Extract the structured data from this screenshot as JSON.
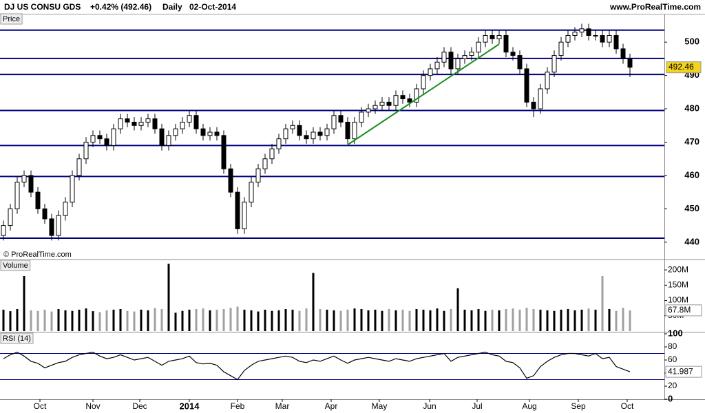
{
  "header": {
    "instrument": "DJ US CONSU GDS",
    "change": "+0.42% (492.46)",
    "period": "Daily",
    "date": "02-Oct-2014",
    "site": "www.ProRealTime.com",
    "watermark": "© ProRealTime.com"
  },
  "chart_data": [
    {
      "type": "candlestick",
      "title": "Price",
      "open": [
        442,
        445,
        450,
        458,
        460,
        455,
        450,
        447,
        442,
        448,
        452,
        460,
        465,
        470,
        472,
        471,
        469,
        474,
        477,
        476,
        475,
        476,
        477,
        474,
        469,
        472,
        474,
        476,
        478,
        474,
        472,
        473,
        472,
        462,
        455,
        444,
        452,
        458,
        462,
        465,
        468,
        471,
        474,
        475,
        472,
        471,
        473,
        472,
        474,
        478,
        476,
        471,
        476,
        479,
        480,
        481,
        482,
        481,
        484,
        483,
        482,
        486,
        490,
        492,
        494,
        497,
        492,
        495,
        496,
        497,
        500,
        502,
        501,
        502,
        497,
        496,
        492,
        482,
        480,
        486,
        491,
        496,
        500,
        502,
        503,
        504,
        502,
        502,
        500,
        502,
        498,
        495
      ],
      "high": [
        446.5,
        451.5,
        459.5,
        461.5,
        461.5,
        456.5,
        451.5,
        448.5,
        449.5,
        453.5,
        461.5,
        466.5,
        471.5,
        473.5,
        473.5,
        472.5,
        475.5,
        478.5,
        478.5,
        477.5,
        477.5,
        478.5,
        478.5,
        475.5,
        473.5,
        475.5,
        477.5,
        479.5,
        479.5,
        475.5,
        474.5,
        474.5,
        473.5,
        463.5,
        456.5,
        453.5,
        459.5,
        463.5,
        466.5,
        469.5,
        472.5,
        475.5,
        476.5,
        476.5,
        473.5,
        474.5,
        474.5,
        475.5,
        479.5,
        479.5,
        477.5,
        477.5,
        480.5,
        481.5,
        482.5,
        483.5,
        483.5,
        485.5,
        485.5,
        484.5,
        487.5,
        491.5,
        493.5,
        495.5,
        498.5,
        498.5,
        496.5,
        497.5,
        498.5,
        501.5,
        503.5,
        503.5,
        503.5,
        503.5,
        498.5,
        497.5,
        493.5,
        483.5,
        487.5,
        492.5,
        497.5,
        501.5,
        503.5,
        504.5,
        505.5,
        505.5,
        503.5,
        503.5,
        503.5,
        503.5,
        499.5,
        496.5
      ],
      "low": [
        440.5,
        443.5,
        448.5,
        456.5,
        453.5,
        448.5,
        445.5,
        440.5,
        440.5,
        446.5,
        450.5,
        458.5,
        463.5,
        468.5,
        469.5,
        467.5,
        467.5,
        472.5,
        474.5,
        473.5,
        473.5,
        474.5,
        472.5,
        467.5,
        467.5,
        470.5,
        472.5,
        474.5,
        472.5,
        470.5,
        470.5,
        470.5,
        460.5,
        453.5,
        442.5,
        442.5,
        450.5,
        456.5,
        460.5,
        463.5,
        466.5,
        469.5,
        472.5,
        470.5,
        469.5,
        469.5,
        470.5,
        470.5,
        472.5,
        474.5,
        469.5,
        469.5,
        474.5,
        477.5,
        478.5,
        479.5,
        479.5,
        479.5,
        481.5,
        480.5,
        480.5,
        484.5,
        488.5,
        490.5,
        492.5,
        490.5,
        490.5,
        493.5,
        494.5,
        495.5,
        498.5,
        499.5,
        499.5,
        495.5,
        494.5,
        490.5,
        480.5,
        477.5,
        478.5,
        484.5,
        489.5,
        494.5,
        498.5,
        500.5,
        501.5,
        500.5,
        500.5,
        498.5,
        498.5,
        496.5,
        493.5,
        489.5
      ],
      "close": [
        445,
        450,
        458,
        460,
        455,
        450,
        447,
        442,
        448,
        452,
        460,
        465,
        470,
        472,
        471,
        469,
        474,
        477,
        476,
        475,
        476,
        477,
        474,
        469,
        472,
        474,
        476,
        478,
        474,
        472,
        473,
        472,
        462,
        455,
        444,
        452,
        458,
        462,
        465,
        468,
        471,
        474,
        475,
        472,
        471,
        473,
        472,
        474,
        478,
        476,
        471,
        476,
        479,
        480,
        481,
        482,
        481,
        484,
        483,
        482,
        486,
        490,
        492,
        494,
        497,
        492,
        495,
        496,
        497,
        500,
        502,
        501,
        502,
        497,
        496,
        492,
        482,
        480,
        486,
        491,
        496,
        500,
        502,
        503,
        504,
        502,
        502,
        500,
        502,
        498,
        495,
        492.46
      ],
      "ylim": [
        434.8,
        508.3
      ],
      "yticks": [
        440,
        450,
        460,
        470,
        480,
        490,
        500
      ],
      "xlim": [
        -0.5,
        95.5
      ],
      "xticks": [
        {
          "value": 5.3,
          "label": "Oct"
        },
        {
          "value": 13,
          "label": "Nov"
        },
        {
          "value": 19.8,
          "label": "Dec"
        },
        {
          "value": 27,
          "label": "2014"
        },
        {
          "value": 34,
          "label": "Feb"
        },
        {
          "value": 40.5,
          "label": "Mar"
        },
        {
          "value": 47.6,
          "label": "Apr"
        },
        {
          "value": 54.6,
          "label": "May"
        },
        {
          "value": 61.9,
          "label": "Jun"
        },
        {
          "value": 68.8,
          "label": "Jul"
        },
        {
          "value": 76.4,
          "label": "Aug"
        },
        {
          "value": 83.5,
          "label": "Sep"
        },
        {
          "value": 90.6,
          "label": "Oct"
        }
      ],
      "hlines": [
        503.6,
        495.1,
        490.3,
        479.5,
        469.0,
        459.7,
        441.2
      ],
      "hline_color": "#000080",
      "trendline": {
        "x": [
          50,
          72
        ],
        "y": [
          469.2,
          499.4
        ],
        "color": "#1a8c1a"
      },
      "color": "#000000"
    },
    {
      "type": "bar",
      "title": "Volume",
      "values": [
        70,
        65,
        72,
        180,
        68,
        66,
        70,
        64,
        72,
        68,
        66,
        70,
        74,
        65,
        62,
        68,
        70,
        72,
        66,
        64,
        70,
        68,
        75,
        72,
        220,
        60,
        66,
        70,
        72,
        74,
        68,
        70,
        72,
        76,
        80,
        70,
        68,
        64,
        70,
        66,
        68,
        72,
        70,
        66,
        74,
        190,
        72,
        70,
        68,
        66,
        70,
        74,
        72,
        68,
        70,
        66,
        72,
        68,
        70,
        66,
        72,
        70,
        68,
        74,
        66,
        72,
        140,
        70,
        68,
        72,
        66,
        70,
        68,
        72,
        74,
        70,
        76,
        72,
        70,
        68,
        66,
        70,
        72,
        68,
        70,
        74,
        70,
        180,
        72,
        66,
        76,
        67.8
      ],
      "last_label": "67.8M",
      "ylim": [
        0,
        229.5
      ],
      "yticks": [
        {
          "value": 50,
          "label": "50M"
        },
        {
          "value": 100,
          "label": "100M"
        },
        {
          "value": 150,
          "label": "150M"
        },
        {
          "value": 200,
          "label": "200M"
        }
      ],
      "colors": [
        "#000000",
        "#a0a0a0"
      ]
    },
    {
      "type": "line",
      "title": "RSI (14)",
      "values": [
        62,
        68,
        72,
        66,
        58,
        55,
        48,
        52,
        56,
        58,
        64,
        68,
        70,
        72,
        66,
        62,
        64,
        68,
        64,
        60,
        62,
        64,
        58,
        52,
        58,
        60,
        62,
        66,
        56,
        54,
        55,
        52,
        42,
        36,
        30,
        44,
        52,
        58,
        60,
        62,
        64,
        66,
        64,
        58,
        56,
        60,
        58,
        62,
        66,
        60,
        55,
        60,
        62,
        64,
        62,
        60,
        58,
        62,
        60,
        58,
        62,
        64,
        66,
        68,
        70,
        58,
        64,
        66,
        68,
        70,
        72,
        68,
        66,
        58,
        56,
        48,
        32,
        36,
        50,
        58,
        64,
        68,
        70,
        70,
        68,
        66,
        70,
        62,
        64,
        50,
        46,
        41.987
      ],
      "ylim": [
        0,
        100
      ],
      "yticks": [
        0,
        20,
        40,
        60,
        80,
        100
      ],
      "levels": [
        70,
        30
      ],
      "color": "#000000",
      "level_color": "#000080"
    }
  ]
}
